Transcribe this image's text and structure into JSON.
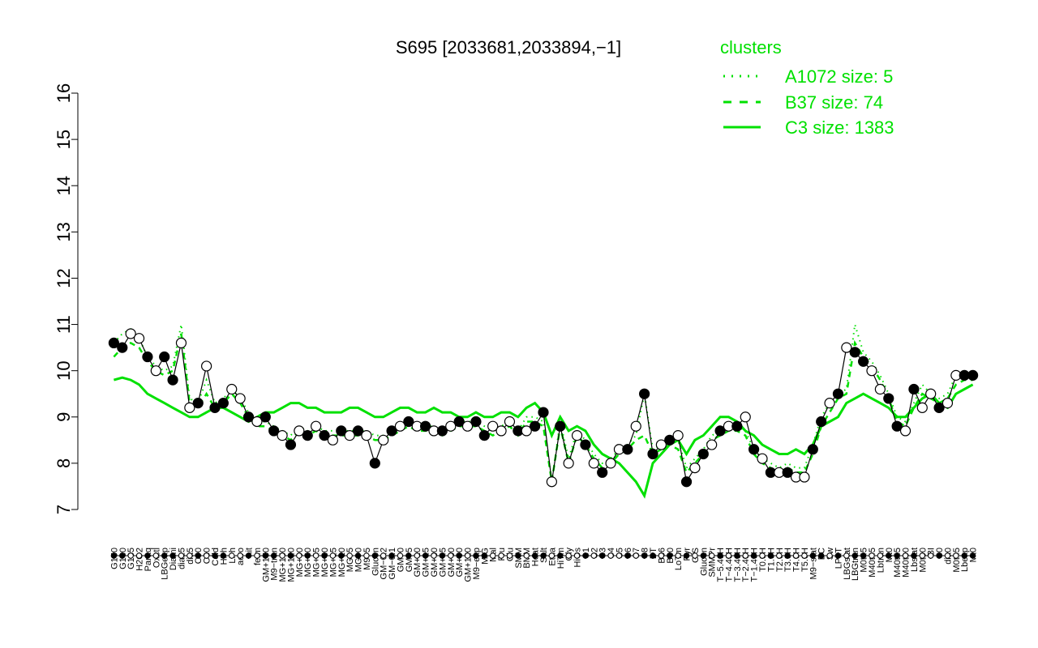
{
  "chart_data": {
    "type": "line",
    "title": "S695 [2033681,2033894,−1]",
    "xlabel": "",
    "ylabel": "",
    "ylim": [
      7,
      16
    ],
    "yticks": [
      7,
      8,
      9,
      10,
      11,
      12,
      13,
      14,
      15,
      16
    ],
    "grid": false,
    "legend": {
      "title": "clusters",
      "placement": "top-right",
      "entries": [
        {
          "label": "A1072 size: 5",
          "style": "dotted"
        },
        {
          "label": "B37 size: 74",
          "style": "dashed"
        },
        {
          "label": "C3 size: 1383",
          "style": "solid"
        }
      ]
    },
    "x_tick_labels": [
      "G150",
      "G180",
      "G135",
      "H2O2",
      "Paraq",
      "Oxctl",
      "LBGexp",
      "Diami",
      "dia15",
      "dia5",
      "C90",
      "C30",
      "Cold",
      "HPh",
      "LPh",
      "aero",
      "nit",
      "ferm",
      "GM+150",
      "M9−tran",
      "MG+150",
      "MG+120",
      "MG+90",
      "MG+60",
      "MG+45",
      "MG+30",
      "MG+15",
      "MG+10",
      "MG+5",
      "MG+0",
      "M9+5",
      "Glucon",
      "GM−0.2",
      "GM−0.1",
      "GM+0",
      "GM+5",
      "GM+10",
      "GM+15",
      "GM+30",
      "GM+45",
      "GM+60",
      "GM+90",
      "GM+120",
      "M9−exp",
      "M/G",
      "Mal",
      "Fru",
      "Glu",
      "SMM",
      "BMM",
      "Heat",
      "Salt",
      "Etha",
      "HiTm",
      "Gly",
      "HiOs",
      "S1",
      "S2",
      "S3",
      "S4",
      "S5",
      "S6",
      "S7",
      "S8",
      "BT",
      "B36",
      "B60",
      "LoTm",
      "Pyr",
      "G/S",
      "Glucon",
      "SMMPr",
      "T−5.40H",
      "T−4.40H",
      "T−3.40H",
      "T−2.40H",
      "T−1.40H",
      "T0.0H",
      "T1.0H",
      "T2.0H",
      "T3.0H",
      "T4.0H",
      "T5.0H",
      "M9−stat",
      "BC",
      "Sw",
      "LPhT",
      "LBGstat",
      "LBGtran",
      "M0t45",
      "M40t45",
      "Lbtran",
      "Mt0",
      "M40t45",
      "M40t90",
      "Lbstat",
      "M0t90",
      "BI",
      "S0",
      "dia0",
      "M0t45",
      "Lbexp",
      "Mt0"
    ],
    "series": [
      {
        "name": "C3 size: 1383",
        "style": "solid",
        "x": [
          1,
          2,
          3,
          4,
          5,
          6,
          7,
          8,
          9,
          10,
          11,
          12,
          13,
          14,
          15,
          16,
          17,
          18,
          19,
          20,
          21,
          22,
          23,
          24,
          25,
          26,
          27,
          28,
          29,
          30,
          31,
          32,
          33,
          34,
          35,
          36,
          37,
          38,
          39,
          40,
          41,
          42,
          43,
          44,
          45,
          46,
          47,
          48,
          49,
          50,
          51,
          52,
          53,
          54,
          55,
          56,
          57,
          58,
          59,
          60,
          61,
          62,
          63,
          64,
          65,
          66,
          67,
          68,
          69,
          70,
          71,
          72,
          73,
          74,
          75,
          76,
          77,
          78,
          79,
          80,
          81,
          82,
          83,
          84,
          85,
          86,
          87,
          88,
          89,
          90,
          91,
          92,
          93,
          94,
          95,
          96,
          97,
          98,
          99,
          100,
          101,
          102,
          103
        ],
        "y": [
          9.8,
          9.85,
          9.8,
          9.7,
          9.5,
          9.4,
          9.3,
          9.2,
          9.1,
          9.0,
          9.0,
          9.1,
          9.2,
          9.2,
          9.1,
          9.0,
          8.9,
          9.0,
          9.1,
          9.1,
          9.2,
          9.3,
          9.3,
          9.2,
          9.2,
          9.1,
          9.1,
          9.1,
          9.2,
          9.2,
          9.1,
          9.0,
          9.0,
          9.1,
          9.2,
          9.2,
          9.1,
          9.1,
          9.2,
          9.1,
          9.1,
          9.0,
          9.0,
          9.1,
          9.0,
          9.0,
          9.1,
          9.1,
          9.0,
          9.2,
          9.3,
          9.1,
          8.6,
          9.0,
          8.7,
          8.8,
          8.7,
          8.4,
          8.2,
          8.1,
          8.0,
          7.8,
          7.6,
          7.3,
          8.0,
          8.2,
          8.4,
          8.5,
          8.2,
          8.5,
          8.6,
          8.8,
          9.0,
          9.0,
          8.9,
          8.7,
          8.6,
          8.4,
          8.3,
          8.2,
          8.2,
          8.3,
          8.2,
          8.4,
          8.8,
          8.9,
          9.0,
          9.3,
          9.4,
          9.5,
          9.4,
          9.3,
          9.2,
          9.0,
          9.0,
          9.2,
          9.4,
          9.5,
          9.3,
          9.2,
          9.5,
          9.6,
          9.7
        ]
      },
      {
        "name": "B37 size: 74",
        "style": "dashed",
        "x": [
          1,
          2,
          3,
          4,
          5,
          6,
          7,
          8,
          9,
          10,
          11,
          12,
          13,
          14,
          15,
          16,
          17,
          18,
          19,
          20,
          21,
          22,
          23,
          24,
          25,
          26,
          27,
          28,
          29,
          30,
          31,
          32,
          33,
          34,
          35,
          36,
          37,
          38,
          39,
          40,
          41,
          42,
          43,
          44,
          45,
          46,
          47,
          48,
          49,
          50,
          51,
          52,
          53,
          54,
          55,
          56,
          57,
          58,
          59,
          60,
          61,
          62,
          63,
          64,
          65,
          66,
          67,
          68,
          69,
          70,
          71,
          72,
          73,
          74,
          75,
          76,
          77,
          78,
          79,
          80,
          81,
          82,
          83,
          84,
          85,
          86,
          87,
          88,
          89,
          90,
          91,
          92,
          93,
          94,
          95,
          96,
          97,
          98,
          99,
          100,
          101,
          102,
          103
        ],
        "y": [
          10.3,
          10.5,
          10.6,
          10.5,
          10.2,
          10.0,
          9.9,
          10.0,
          10.8,
          9.3,
          9.2,
          9.5,
          9.2,
          9.3,
          9.5,
          9.3,
          9.0,
          8.8,
          8.8,
          8.7,
          8.6,
          8.5,
          8.7,
          8.6,
          8.7,
          8.6,
          8.6,
          8.6,
          8.6,
          8.6,
          8.6,
          8.5,
          8.5,
          8.6,
          8.7,
          8.8,
          8.7,
          8.7,
          8.7,
          8.6,
          8.7,
          8.8,
          8.8,
          8.8,
          8.7,
          8.6,
          8.7,
          8.8,
          8.6,
          8.9,
          8.9,
          8.8,
          7.6,
          8.8,
          8.0,
          8.6,
          8.4,
          8.1,
          7.9,
          8.0,
          8.2,
          8.3,
          8.5,
          8.6,
          8.2,
          8.3,
          8.4,
          8.3,
          7.8,
          8.0,
          8.2,
          8.5,
          8.6,
          8.7,
          8.7,
          8.6,
          8.2,
          8.0,
          7.9,
          7.8,
          7.9,
          7.8,
          7.8,
          8.2,
          8.8,
          9.1,
          9.4,
          9.5,
          10.6,
          10.3,
          10.1,
          9.8,
          9.4,
          8.9,
          8.8,
          9.2,
          9.5,
          9.4,
          9.3,
          9.4,
          9.7,
          9.8,
          9.8
        ]
      },
      {
        "name": "A1072 size: 5",
        "style": "dotted",
        "x": [
          1,
          2,
          3,
          4,
          5,
          6,
          7,
          8,
          9,
          10,
          11,
          12,
          13,
          14,
          15,
          16,
          17,
          18,
          19,
          20,
          21,
          22,
          23,
          24,
          25,
          26,
          27,
          28,
          29,
          30,
          31,
          32,
          33,
          34,
          35,
          36,
          37,
          38,
          39,
          40,
          41,
          42,
          43,
          44,
          45,
          46,
          47,
          48,
          49,
          50,
          51,
          52,
          53,
          54,
          55,
          56,
          57,
          58,
          59,
          60,
          61,
          62,
          63,
          64,
          65,
          66,
          67,
          68,
          69,
          70,
          71,
          72,
          73,
          74,
          75,
          76,
          77,
          78,
          79,
          80,
          81,
          82,
          83,
          84,
          85,
          86,
          87,
          88,
          89,
          90,
          91,
          92,
          93,
          94,
          95,
          96,
          97,
          98,
          99,
          100,
          101,
          102,
          103
        ],
        "y": [
          10.6,
          10.8,
          10.9,
          10.7,
          10.3,
          10.1,
          10.0,
          10.1,
          11.0,
          9.4,
          9.3,
          9.8,
          9.3,
          9.4,
          9.6,
          9.4,
          9.1,
          8.9,
          8.9,
          8.8,
          8.7,
          8.6,
          8.8,
          8.7,
          8.8,
          8.7,
          8.7,
          8.7,
          8.7,
          8.7,
          8.7,
          8.6,
          8.6,
          8.7,
          8.8,
          8.9,
          8.8,
          8.8,
          8.8,
          8.7,
          8.8,
          8.9,
          8.9,
          8.9,
          8.8,
          8.7,
          8.8,
          8.9,
          8.7,
          9.0,
          9.0,
          8.9,
          7.6,
          8.9,
          8.1,
          8.7,
          8.5,
          8.2,
          8.0,
          8.1,
          8.3,
          8.4,
          8.6,
          9.5,
          8.3,
          8.4,
          8.5,
          8.5,
          7.9,
          8.1,
          8.3,
          8.6,
          8.7,
          8.8,
          8.8,
          8.7,
          8.3,
          8.1,
          8.0,
          7.9,
          8.0,
          7.9,
          7.9,
          8.4,
          9.0,
          9.3,
          9.5,
          9.6,
          11.0,
          10.4,
          10.2,
          9.9,
          9.5,
          9.0,
          8.9,
          9.3,
          9.7,
          9.5,
          9.4,
          9.5,
          9.9,
          9.9,
          9.9
        ]
      }
    ],
    "points": {
      "x": [
        1,
        2,
        3,
        4,
        5,
        6,
        7,
        8,
        9,
        10,
        11,
        12,
        13,
        14,
        15,
        16,
        17,
        18,
        19,
        20,
        21,
        22,
        23,
        24,
        25,
        26,
        27,
        28,
        29,
        30,
        31,
        32,
        33,
        34,
        35,
        36,
        37,
        38,
        39,
        40,
        41,
        42,
        43,
        44,
        45,
        46,
        47,
        48,
        49,
        50,
        51,
        52,
        53,
        54,
        55,
        56,
        57,
        58,
        59,
        60,
        61,
        62,
        63,
        64,
        65,
        66,
        67,
        68,
        69,
        70,
        71,
        72,
        73,
        74,
        75,
        76,
        77,
        78,
        79,
        80,
        81,
        82,
        83,
        84,
        85,
        86,
        87,
        88,
        89,
        90,
        91,
        92,
        93,
        94,
        95,
        96,
        97,
        98,
        99,
        100,
        101,
        102,
        103
      ],
      "y": [
        10.6,
        10.5,
        10.8,
        10.7,
        10.3,
        10.0,
        10.3,
        9.8,
        10.6,
        9.2,
        9.3,
        10.1,
        9.2,
        9.3,
        9.6,
        9.4,
        9.0,
        8.9,
        9.0,
        8.7,
        8.6,
        8.4,
        8.7,
        8.6,
        8.8,
        8.6,
        8.5,
        8.7,
        8.6,
        8.7,
        8.6,
        8.0,
        8.5,
        8.7,
        8.8,
        8.9,
        8.8,
        8.8,
        8.7,
        8.7,
        8.8,
        8.9,
        8.8,
        8.9,
        8.6,
        8.8,
        8.7,
        8.9,
        8.7,
        8.7,
        8.8,
        9.1,
        7.6,
        8.8,
        8.0,
        8.6,
        8.4,
        8.0,
        7.8,
        8.0,
        8.3,
        8.3,
        8.8,
        9.5,
        8.2,
        8.4,
        8.5,
        8.6,
        7.6,
        7.9,
        8.2,
        8.4,
        8.7,
        8.8,
        8.8,
        9.0,
        8.3,
        8.1,
        7.8,
        7.8,
        7.8,
        7.7,
        7.7,
        8.3,
        8.9,
        9.3,
        9.5,
        10.5,
        10.4,
        10.2,
        10.0,
        9.6,
        9.4,
        8.8,
        8.7,
        9.6,
        9.2,
        9.5,
        9.2,
        9.3,
        9.9,
        9.9,
        9.9
      ],
      "filled": [
        true,
        true,
        false,
        false,
        true,
        false,
        true,
        true,
        false,
        false,
        true,
        false,
        true,
        true,
        false,
        false,
        true,
        false,
        true,
        true,
        false,
        true,
        false,
        true,
        false,
        true,
        false,
        true,
        false,
        true,
        false,
        true,
        false,
        true,
        false,
        true,
        false,
        true,
        false,
        true,
        false,
        true,
        false,
        true,
        true,
        false,
        false,
        false,
        true,
        false,
        true,
        true,
        false,
        true,
        false,
        false,
        true,
        false,
        true,
        false,
        false,
        true,
        false,
        true,
        true,
        false,
        true,
        false,
        true,
        false,
        true,
        false,
        true,
        false,
        true,
        false,
        true,
        false,
        true,
        false,
        true,
        false,
        false,
        true,
        true,
        false,
        true,
        false,
        true,
        true,
        false,
        false,
        true,
        true,
        false,
        true,
        false,
        false,
        true,
        false,
        false,
        true,
        true
      ]
    }
  }
}
